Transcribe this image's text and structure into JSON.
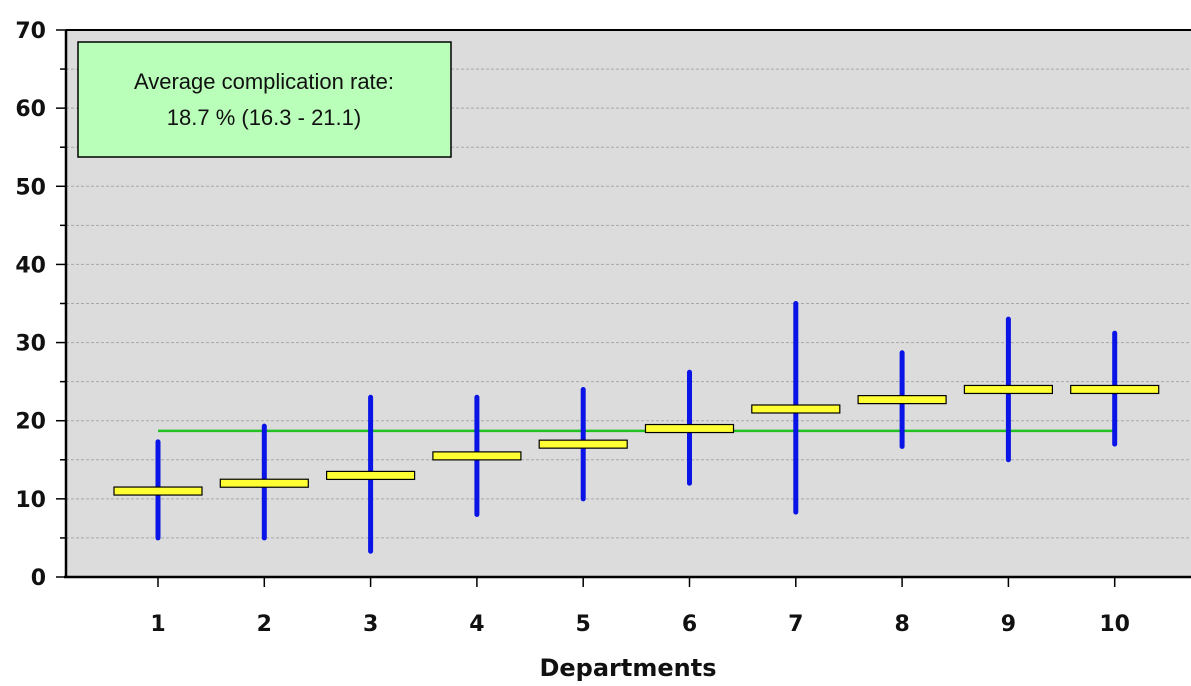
{
  "chart_data": {
    "type": "error-bar",
    "xlabel": "Departments",
    "ylabel": "",
    "ylim": [
      0,
      70
    ],
    "yticks": [
      0,
      10,
      20,
      30,
      40,
      50,
      60,
      70
    ],
    "grid": true,
    "categories": [
      "1",
      "2",
      "3",
      "4",
      "5",
      "6",
      "7",
      "8",
      "9",
      "10"
    ],
    "estimates": [
      11.0,
      12.0,
      13.0,
      15.5,
      17.0,
      19.0,
      21.5,
      22.7,
      24.0,
      24.0
    ],
    "lower": [
      5.0,
      5.0,
      3.3,
      8.0,
      10.0,
      12.0,
      8.3,
      16.7,
      15.0,
      17.0
    ],
    "upper": [
      17.3,
      19.3,
      23.0,
      23.0,
      24.0,
      26.2,
      35.0,
      28.7,
      33.0,
      31.2
    ],
    "average_line": 18.7,
    "annotation": {
      "line1": "Average complication rate:",
      "line2": "18.7 % (16.3 - 21.1)"
    },
    "colors": {
      "plot_bg": "#dcdcdc",
      "interval": "#0a14e6",
      "estimate_fill": "#ffff33",
      "average_line": "#22c022",
      "annotation_bg": "#b9ffb9"
    }
  }
}
